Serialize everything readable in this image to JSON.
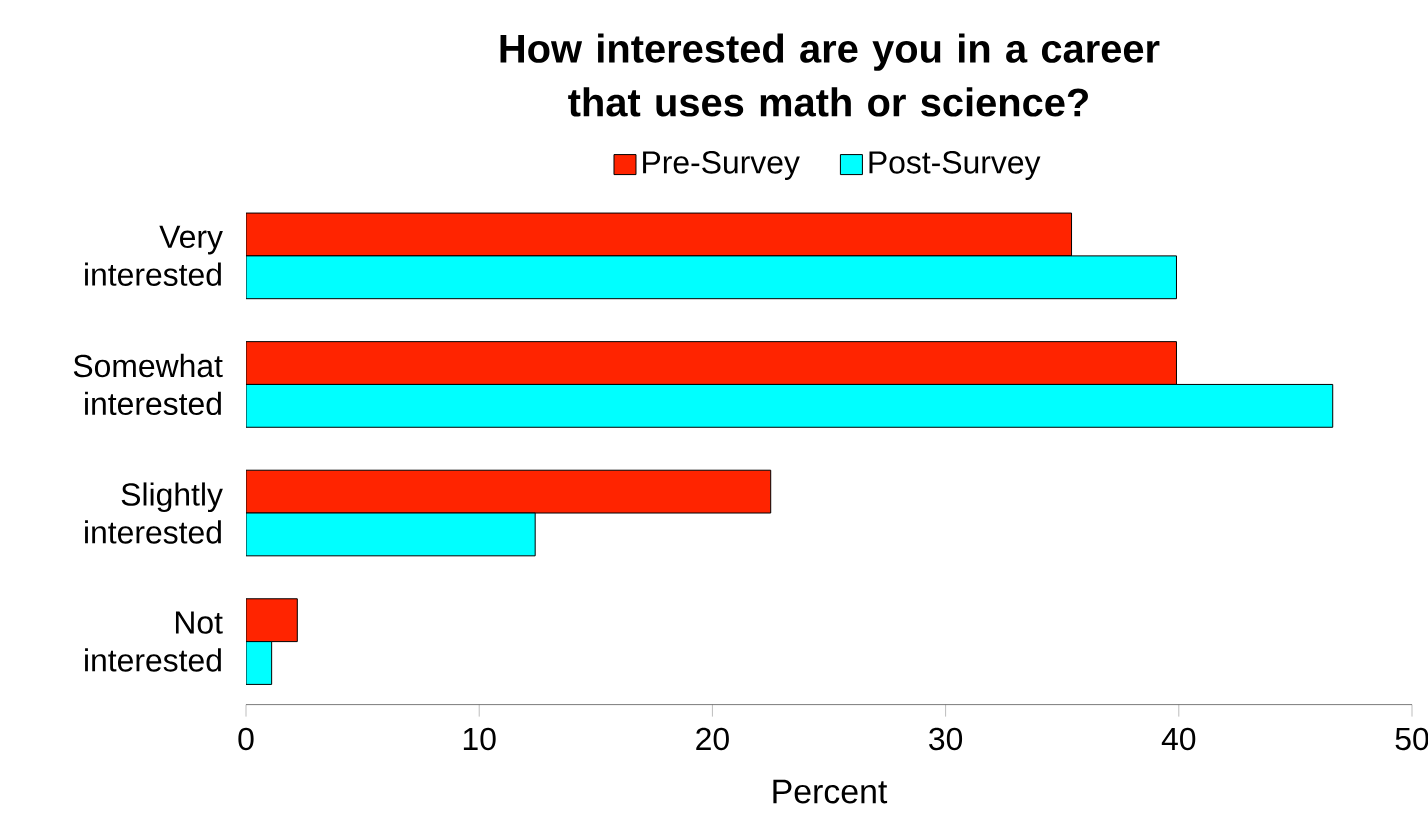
{
  "chart_data": {
    "type": "bar",
    "orientation": "horizontal",
    "title": "How interested are you in a career that uses math or science?",
    "xlabel": "Percent",
    "categories": [
      "Very interested",
      "Somewhat interested",
      "Slightly interested",
      "Not interested"
    ],
    "series": [
      {
        "name": "Pre-Survey",
        "color": "#ff2400",
        "values": [
          35.4,
          39.9,
          22.5,
          2.2
        ]
      },
      {
        "name": "Post-Survey",
        "color": "#00ffff",
        "values": [
          39.9,
          46.6,
          12.4,
          1.1
        ]
      }
    ],
    "xlim": [
      0,
      50
    ],
    "xticks": [
      0,
      10,
      20,
      30,
      40,
      50
    ],
    "legend": "top",
    "grid": false
  }
}
